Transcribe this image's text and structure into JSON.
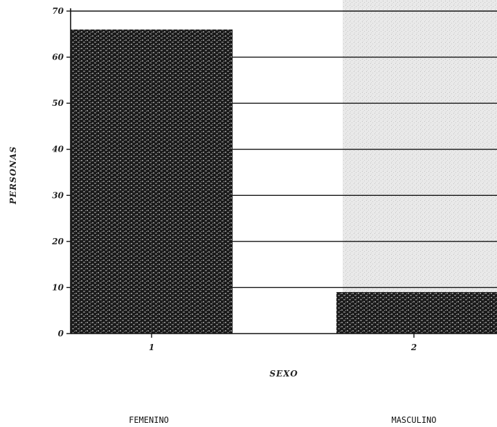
{
  "chart_data": {
    "type": "bar",
    "categories": [
      "1",
      "2"
    ],
    "category_names": [
      "FEMENINO",
      "MASCULINO"
    ],
    "values": [
      66,
      9
    ],
    "title": "",
    "xlabel": "SEXO",
    "ylabel": "PERSONAS",
    "ylim": [
      0,
      70
    ],
    "yticks": [
      "0",
      "10",
      "20",
      "30",
      "40",
      "50",
      "60",
      "70"
    ],
    "grid": true,
    "bar_color": "#1a1a1a",
    "background_shade": "#cfcfcf"
  }
}
